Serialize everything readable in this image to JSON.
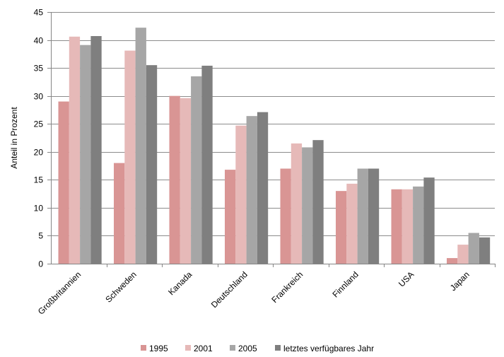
{
  "chart_data": {
    "type": "bar",
    "title": "",
    "xlabel": "",
    "ylabel": "Anteil in Prozent",
    "ylim": [
      0,
      45
    ],
    "yticks": [
      0,
      5,
      10,
      15,
      20,
      25,
      30,
      35,
      40,
      45
    ],
    "grid": true,
    "legend_position": "bottom",
    "categories": [
      "Großbritannien",
      "Schweden",
      "Kanada",
      "Deutschland",
      "Frankreich",
      "Finnland",
      "USA",
      "Japan"
    ],
    "series": [
      {
        "name": "1995",
        "color": "#d99594",
        "values": [
          29.0,
          18.0,
          30.0,
          16.8,
          17.0,
          13.0,
          13.3,
          1.0
        ]
      },
      {
        "name": "2001",
        "color": "#e6b9b8",
        "values": [
          40.6,
          38.1,
          29.6,
          24.7,
          21.5,
          14.3,
          13.3,
          3.4
        ]
      },
      {
        "name": "2005",
        "color": "#a6a6a6",
        "values": [
          39.1,
          42.2,
          33.5,
          26.4,
          20.8,
          17.0,
          13.8,
          5.5
        ]
      },
      {
        "name": "letztes verfügbares Jahr",
        "color": "#7f7f7f",
        "values": [
          40.7,
          35.5,
          35.4,
          27.1,
          22.1,
          17.0,
          15.4,
          4.7
        ]
      }
    ]
  }
}
